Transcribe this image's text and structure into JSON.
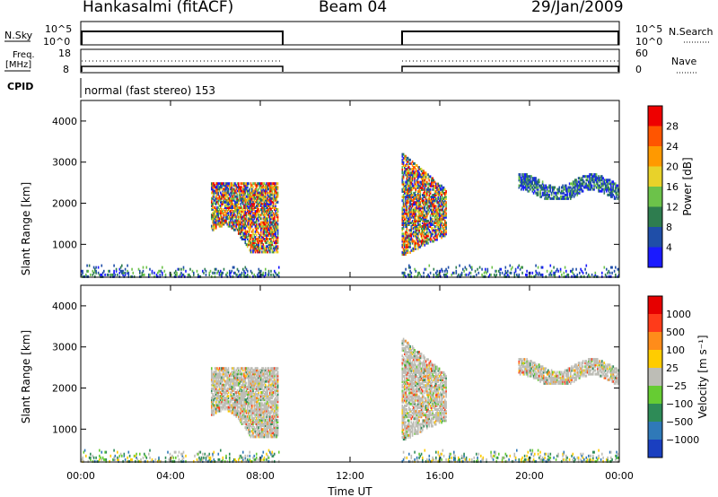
{
  "header": {
    "station": "Hankasalmi (fitACF)",
    "beam": "Beam 04",
    "date": "29/Jan/2009"
  },
  "top_panels": {
    "nsky_label": "N.Sky",
    "nsky_top_tick": "10^5",
    "nsky_bottom_tick": "10^0",
    "nsearch_label": "N.Search",
    "nsearch_top_tick": "10^5",
    "nsearch_bottom_tick": "10^0",
    "freq_label_1": "Freq.",
    "freq_label_2": "[MHz]",
    "freq_top_tick": "18",
    "freq_bottom_tick": "8",
    "nave_label": "Nave",
    "nave_top_tick": "60",
    "nave_bottom_tick": "0",
    "cpid_label": "CPID",
    "cpid_text": "normal (fast stereo) 153"
  },
  "x_axis": {
    "title": "Time UT",
    "ticks": [
      "00:00",
      "04:00",
      "08:00",
      "12:00",
      "16:00",
      "20:00",
      "00:00"
    ]
  },
  "chart_data": [
    {
      "type": "heatmap",
      "panel": "power",
      "ylabel": "Slant Range [km]",
      "x_range": [
        0,
        24
      ],
      "ylim": [
        200,
        4500
      ],
      "y_ticks": [
        "1000",
        "2000",
        "3000",
        "4000"
      ],
      "colorbar": {
        "label": "Power [dB]",
        "ticks": [
          "4",
          "8",
          "12",
          "16",
          "20",
          "24",
          "28"
        ],
        "colors": [
          "#1a1aff",
          "#1f4ea8",
          "#2e7d4f",
          "#6cc24a",
          "#e8d22a",
          "#ff9900",
          "#ff5500",
          "#ee0000"
        ]
      },
      "data_gaps": [
        [
          8.8,
          14.3
        ]
      ],
      "echo_regions": [
        {
          "t_start": 5.8,
          "t_end": 8.8,
          "range_min": 800,
          "range_max": 2500,
          "typical_level": 16
        },
        {
          "t_start": 14.3,
          "t_end": 16.3,
          "range_min": 700,
          "range_max": 3200,
          "typical_level": 12
        },
        {
          "t_start": 19.5,
          "t_end": 24.0,
          "range_min": 2100,
          "range_max": 2700,
          "typical_level": 8
        },
        {
          "t_start": 0.0,
          "t_end": 24.0,
          "range_min": 200,
          "range_max": 500,
          "typical_level": 8
        }
      ]
    },
    {
      "type": "heatmap",
      "panel": "velocity",
      "ylabel": "Slant Range [km]",
      "x_range": [
        0,
        24
      ],
      "ylim": [
        200,
        4500
      ],
      "y_ticks": [
        "1000",
        "2000",
        "3000",
        "4000"
      ],
      "colorbar": {
        "label": "Velocity [m s⁻¹]",
        "ticks": [
          "1000",
          "500",
          "100",
          "25",
          "−25",
          "−100",
          "−500",
          "−1000"
        ],
        "colors": [
          "#1a3fc0",
          "#2f79b8",
          "#2e8b57",
          "#66cc33",
          "#bdbdb6",
          "#ffcc00",
          "#ff8c1a",
          "#ff3b1a",
          "#e60000"
        ]
      },
      "data_gaps": [
        [
          8.8,
          14.3
        ]
      ],
      "echo_regions": [
        {
          "t_start": 5.8,
          "t_end": 8.8,
          "range_min": 800,
          "range_max": 2500,
          "typical_velocity": 0
        },
        {
          "t_start": 14.3,
          "t_end": 16.3,
          "range_min": 700,
          "range_max": 3200,
          "typical_velocity": -50
        },
        {
          "t_start": 19.5,
          "t_end": 24.0,
          "range_min": 2100,
          "range_max": 2700,
          "typical_velocity": 0
        },
        {
          "t_start": 0.0,
          "t_end": 24.0,
          "range_min": 200,
          "range_max": 500,
          "typical_velocity": 50
        }
      ]
    }
  ]
}
